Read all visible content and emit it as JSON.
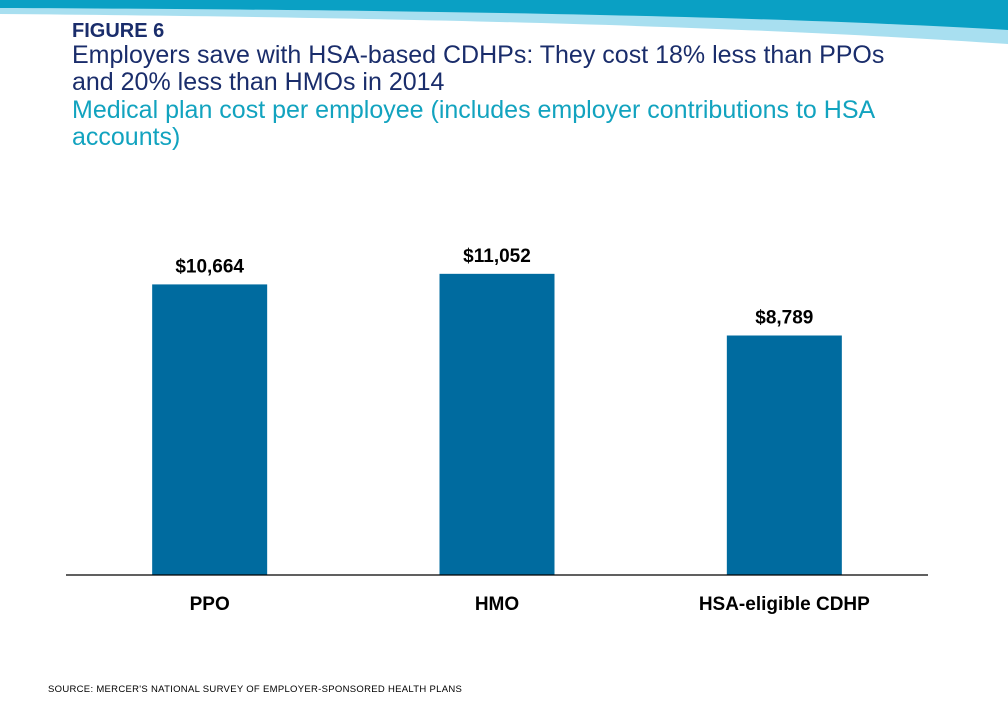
{
  "figure": {
    "label": "FIGURE 6",
    "title": "Employers save with HSA-based CDHPs:  They cost 18% less than PPOs and 20% less than HMOs in 2014",
    "subtitle": "Medical plan cost per employee (includes employer contributions to HSA accounts)"
  },
  "colors": {
    "label": "#1a2d6b",
    "title": "#1a2d6b",
    "subtitle": "#12a3bf",
    "bar": "#006b9f",
    "band_dark": "#0aa0c4",
    "band_light": "#a8dff0"
  },
  "chart_data": {
    "type": "bar",
    "categories": [
      "PPO",
      "HMO",
      "HSA-eligible CDHP"
    ],
    "values": [
      10664,
      11052,
      8789
    ],
    "value_labels": [
      "$10,664",
      "$11,052",
      "$8,789"
    ],
    "title": "Medical plan cost per employee (includes employer contributions to HSA accounts)",
    "xlabel": "",
    "ylabel": "",
    "ylim": [
      0,
      12000
    ],
    "grid": false,
    "legend": "none"
  },
  "source": "SOURCE:  MERCER'S  NATIONAL  SURVEY  OF  EMPLOYER-SPONSORED  HEALTH  PLANS"
}
